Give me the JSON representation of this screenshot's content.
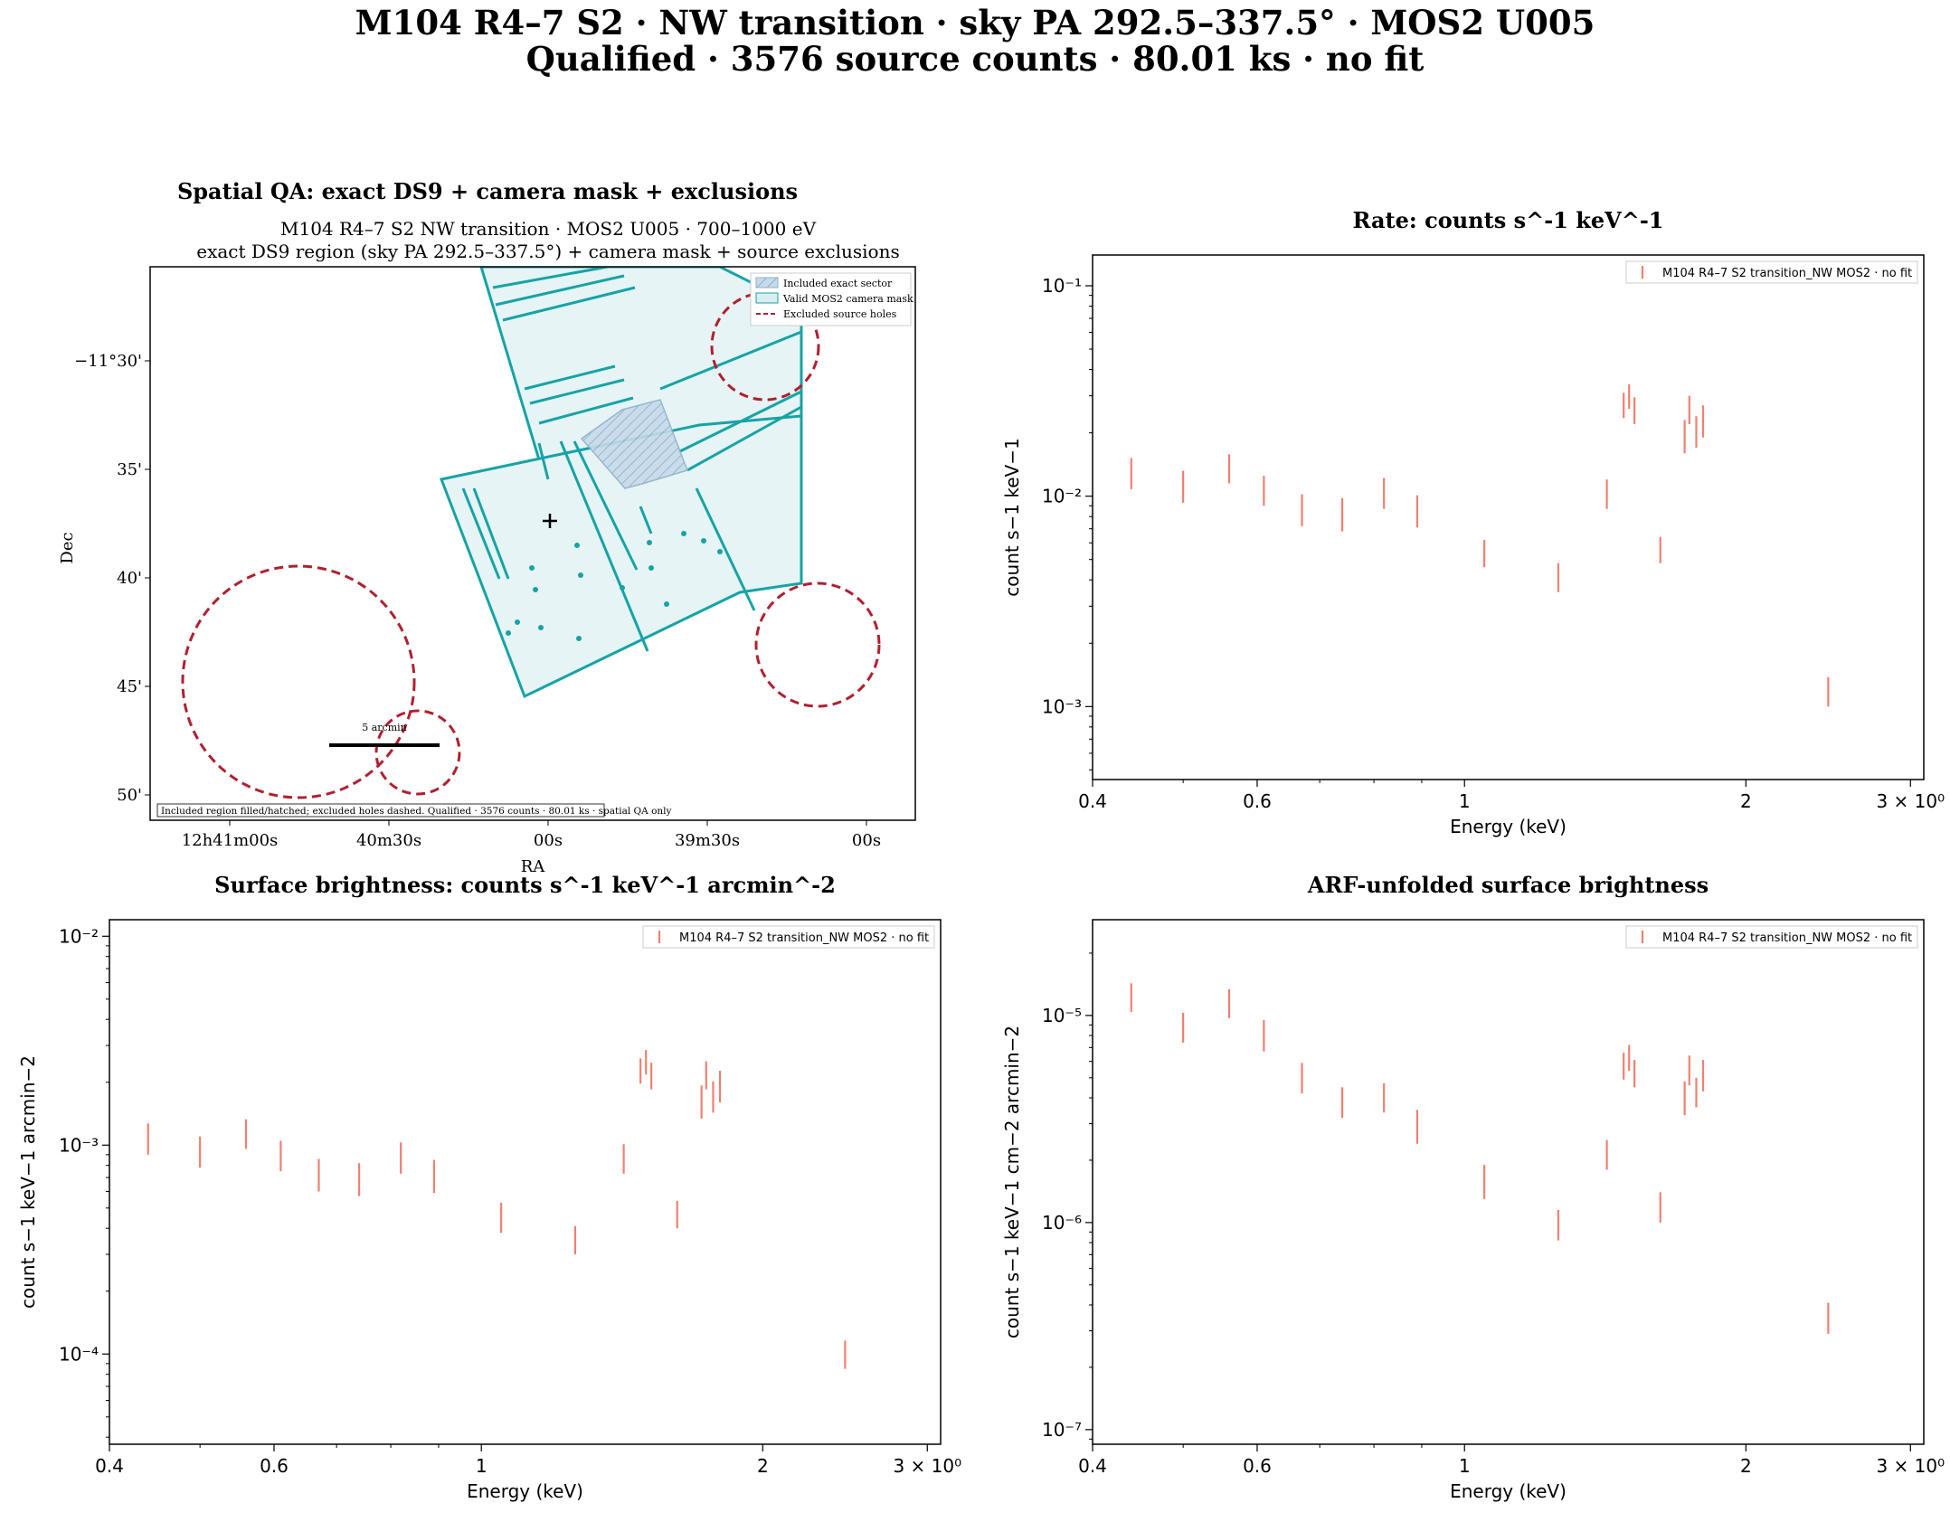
{
  "figure": {
    "title_line1": "M104 R4–7 S2 · NW transition · sky PA 292.5–337.5° · MOS2 U005",
    "title_line2": "Qualified · 3576 source counts · 80.01 ks · no fit"
  },
  "spatial_panel": {
    "title": "Spatial QA: exact DS9 + camera mask + exclusions",
    "subtitle_line1": "M104 R4–7 S2 NW transition · MOS2 U005 · 700–1000 eV",
    "subtitle_line2": "exact DS9 region (sky PA 292.5–337.5°) + camera mask + source exclusions",
    "xlabel": "RA",
    "ylabel": "Dec",
    "x_ticks": [
      "12h41m00s",
      "40m30s",
      "00s",
      "39m30s",
      "00s"
    ],
    "y_ticks": [
      "−11°30'",
      "35'",
      "40'",
      "45'",
      "50'"
    ],
    "legend": [
      "Included exact sector",
      "Valid MOS2 camera mask",
      "Excluded source holes"
    ],
    "scale_bar_label": "5 arcmin",
    "note": "Included region filled/hatched; excluded holes dashed. Qualified · 3576 counts · 80.01 ks · spatial QA only",
    "colors": {
      "mask": "#17a3a6",
      "mask_fill": "#e6f4f5",
      "sector": "#a9c6dc",
      "exclusion": "#b0202f"
    }
  },
  "chart_data": [
    {
      "type": "scatter",
      "title": "Rate: counts s^-1 keV^-1",
      "xlabel": "Energy (keV)",
      "ylabel": "count s−1 keV−1",
      "xscale": "log",
      "yscale": "log",
      "xlim": [
        0.4,
        3.1
      ],
      "ylim": [
        0.00045,
        0.14
      ],
      "x_tick_labels": [
        "0.4",
        "0.6",
        "1",
        "2",
        "3 × 10⁰"
      ],
      "y_tick_labels": [
        "10⁻³",
        "10⁻²",
        "10⁻¹"
      ],
      "legend": "top-right",
      "grid": false,
      "color": "#f08070",
      "series": [
        {
          "name": "M104 R4–7 S2 transition_NW MOS2 · no fit",
          "points": [
            {
              "x": 0.44,
              "y": 0.0128,
              "lo": 0.0108,
              "hi": 0.0152
            },
            {
              "x": 0.5,
              "y": 0.0111,
              "lo": 0.0093,
              "hi": 0.0132
            },
            {
              "x": 0.56,
              "y": 0.0135,
              "lo": 0.0115,
              "hi": 0.0158
            },
            {
              "x": 0.61,
              "y": 0.0106,
              "lo": 0.009,
              "hi": 0.0125
            },
            {
              "x": 0.67,
              "y": 0.0086,
              "lo": 0.0072,
              "hi": 0.0102
            },
            {
              "x": 0.74,
              "y": 0.0082,
              "lo": 0.0068,
              "hi": 0.0098
            },
            {
              "x": 0.82,
              "y": 0.0103,
              "lo": 0.0087,
              "hi": 0.0122
            },
            {
              "x": 0.89,
              "y": 0.0085,
              "lo": 0.0071,
              "hi": 0.0101
            },
            {
              "x": 1.05,
              "y": 0.0053,
              "lo": 0.0046,
              "hi": 0.0062
            },
            {
              "x": 1.26,
              "y": 0.0041,
              "lo": 0.0035,
              "hi": 0.0048
            },
            {
              "x": 1.42,
              "y": 0.0102,
              "lo": 0.0087,
              "hi": 0.012
            },
            {
              "x": 1.48,
              "y": 0.027,
              "lo": 0.0235,
              "hi": 0.031
            },
            {
              "x": 1.5,
              "y": 0.0295,
              "lo": 0.026,
              "hi": 0.034
            },
            {
              "x": 1.52,
              "y": 0.0255,
              "lo": 0.022,
              "hi": 0.0295
            },
            {
              "x": 1.62,
              "y": 0.0055,
              "lo": 0.0048,
              "hi": 0.0064
            },
            {
              "x": 1.72,
              "y": 0.019,
              "lo": 0.016,
              "hi": 0.023
            },
            {
              "x": 1.74,
              "y": 0.0255,
              "lo": 0.022,
              "hi": 0.03
            },
            {
              "x": 1.77,
              "y": 0.02,
              "lo": 0.017,
              "hi": 0.024
            },
            {
              "x": 1.8,
              "y": 0.0225,
              "lo": 0.019,
              "hi": 0.027
            },
            {
              "x": 2.45,
              "y": 0.00118,
              "lo": 0.001,
              "hi": 0.00138
            }
          ]
        }
      ]
    },
    {
      "type": "scatter",
      "title": "Surface brightness: counts s^-1 keV^-1 arcmin^-2",
      "xlabel": "Energy (keV)",
      "ylabel": "count s−1 keV−1 arcmin−2",
      "xscale": "log",
      "yscale": "log",
      "xlim": [
        0.4,
        3.1
      ],
      "ylim": [
        3.7e-05,
        0.012
      ],
      "x_tick_labels": [
        "0.4",
        "0.6",
        "1",
        "2",
        "3 × 10⁰"
      ],
      "y_tick_labels": [
        "10⁻⁴",
        "10⁻³",
        "10⁻²"
      ],
      "legend": "top-right",
      "grid": false,
      "color": "#f08070",
      "series": [
        {
          "name": "M104 R4–7 S2 transition_NW MOS2 · no fit",
          "points": [
            {
              "x": 0.44,
              "y": 0.00107,
              "lo": 0.0009,
              "hi": 0.00127
            },
            {
              "x": 0.5,
              "y": 0.00093,
              "lo": 0.00078,
              "hi": 0.0011
            },
            {
              "x": 0.56,
              "y": 0.00113,
              "lo": 0.00096,
              "hi": 0.00133
            },
            {
              "x": 0.61,
              "y": 0.00089,
              "lo": 0.00075,
              "hi": 0.00105
            },
            {
              "x": 0.67,
              "y": 0.00072,
              "lo": 0.0006,
              "hi": 0.00086
            },
            {
              "x": 0.74,
              "y": 0.00069,
              "lo": 0.00057,
              "hi": 0.00082
            },
            {
              "x": 0.82,
              "y": 0.00087,
              "lo": 0.00073,
              "hi": 0.00103
            },
            {
              "x": 0.89,
              "y": 0.00071,
              "lo": 0.00059,
              "hi": 0.00085
            },
            {
              "x": 1.05,
              "y": 0.00045,
              "lo": 0.00038,
              "hi": 0.00053
            },
            {
              "x": 1.26,
              "y": 0.00035,
              "lo": 0.0003,
              "hi": 0.00041
            },
            {
              "x": 1.42,
              "y": 0.00086,
              "lo": 0.00073,
              "hi": 0.00101
            },
            {
              "x": 1.48,
              "y": 0.00227,
              "lo": 0.00197,
              "hi": 0.0026
            },
            {
              "x": 1.5,
              "y": 0.00248,
              "lo": 0.00218,
              "hi": 0.00285
            },
            {
              "x": 1.52,
              "y": 0.00214,
              "lo": 0.00185,
              "hi": 0.00248
            },
            {
              "x": 1.62,
              "y": 0.00046,
              "lo": 0.0004,
              "hi": 0.00054
            },
            {
              "x": 1.72,
              "y": 0.0016,
              "lo": 0.00134,
              "hi": 0.00193
            },
            {
              "x": 1.74,
              "y": 0.00214,
              "lo": 0.00185,
              "hi": 0.00252
            },
            {
              "x": 1.77,
              "y": 0.00168,
              "lo": 0.00143,
              "hi": 0.00202
            },
            {
              "x": 1.8,
              "y": 0.00189,
              "lo": 0.0016,
              "hi": 0.00227
            },
            {
              "x": 2.45,
              "y": 9.9e-05,
              "lo": 8.5e-05,
              "hi": 0.000116
            }
          ]
        }
      ]
    },
    {
      "type": "scatter",
      "title": "ARF-unfolded surface brightness",
      "xlabel": "Energy (keV)",
      "ylabel": "count s−1 keV−1 cm−2 arcmin−2",
      "xscale": "log",
      "yscale": "log",
      "xlim": [
        0.4,
        3.1
      ],
      "ylim": [
        8.5e-08,
        2.9e-05
      ],
      "x_tick_labels": [
        "0.4",
        "0.6",
        "1",
        "2",
        "3 × 10⁰"
      ],
      "y_tick_labels": [
        "10⁻⁷",
        "10⁻⁶",
        "10⁻⁵"
      ],
      "legend": "top-right",
      "grid": false,
      "color": "#f08070",
      "series": [
        {
          "name": "M104 R4–7 S2 transition_NW MOS2 · no fit",
          "points": [
            {
              "x": 0.44,
              "y": 1.22e-05,
              "lo": 1.04e-05,
              "hi": 1.43e-05
            },
            {
              "x": 0.5,
              "y": 8.7e-06,
              "lo": 7.4e-06,
              "hi": 1.03e-05
            },
            {
              "x": 0.56,
              "y": 1.14e-05,
              "lo": 9.7e-06,
              "hi": 1.34e-05
            },
            {
              "x": 0.61,
              "y": 8e-06,
              "lo": 6.7e-06,
              "hi": 9.5e-06
            },
            {
              "x": 0.67,
              "y": 5e-06,
              "lo": 4.2e-06,
              "hi": 5.9e-06
            },
            {
              "x": 0.74,
              "y": 3.8e-06,
              "lo": 3.2e-06,
              "hi": 4.5e-06
            },
            {
              "x": 0.82,
              "y": 4e-06,
              "lo": 3.4e-06,
              "hi": 4.7e-06
            },
            {
              "x": 0.89,
              "y": 2.9e-06,
              "lo": 2.4e-06,
              "hi": 3.5e-06
            },
            {
              "x": 1.05,
              "y": 1.6e-06,
              "lo": 1.3e-06,
              "hi": 1.9e-06
            },
            {
              "x": 1.26,
              "y": 9.7e-07,
              "lo": 8.2e-07,
              "hi": 1.15e-06
            },
            {
              "x": 1.42,
              "y": 2.1e-06,
              "lo": 1.8e-06,
              "hi": 2.5e-06
            },
            {
              "x": 1.48,
              "y": 5.7e-06,
              "lo": 4.9e-06,
              "hi": 6.6e-06
            },
            {
              "x": 1.5,
              "y": 6.2e-06,
              "lo": 5.4e-06,
              "hi": 7.2e-06
            },
            {
              "x": 1.52,
              "y": 5.2e-06,
              "lo": 4.5e-06,
              "hi": 6.1e-06
            },
            {
              "x": 1.62,
              "y": 1.2e-06,
              "lo": 1e-06,
              "hi": 1.4e-06
            },
            {
              "x": 1.72,
              "y": 4e-06,
              "lo": 3.3e-06,
              "hi": 4.8e-06
            },
            {
              "x": 1.74,
              "y": 5.4e-06,
              "lo": 4.6e-06,
              "hi": 6.4e-06
            },
            {
              "x": 1.77,
              "y": 4.2e-06,
              "lo": 3.6e-06,
              "hi": 5e-06
            },
            {
              "x": 1.8,
              "y": 5.1e-06,
              "lo": 4.3e-06,
              "hi": 6.1e-06
            },
            {
              "x": 2.45,
              "y": 3.5e-07,
              "lo": 2.9e-07,
              "hi": 4.1e-07
            }
          ]
        }
      ]
    }
  ]
}
